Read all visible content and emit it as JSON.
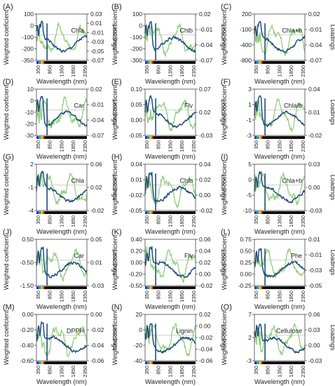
{
  "figure": {
    "panel_labels": [
      "(A)",
      "(B)",
      "(C)",
      "(D)",
      "(E)",
      "(F)",
      "(G)",
      "(H)",
      "(I)",
      "(J)",
      "(K)",
      "(L)",
      "(M)",
      "(N)",
      "(O)"
    ],
    "ylabel_left": "Weighted coeficient",
    "ylabel_right": "Loadings",
    "xlabel": "Wavelength (nm)",
    "x_ticks": [
      "350",
      "850",
      "1350",
      "1850",
      "2350"
    ],
    "colors": {
      "weighted": "#1f4e79",
      "loadings": "#8fce7a",
      "zero_line": "#c8c8c8"
    }
  },
  "chart_data": [
    {
      "label": "(A)",
      "annotation": "Chla",
      "type": "line",
      "xlim": [
        350,
        2500
      ],
      "yticks_left": [
        "100",
        "0",
        "-100",
        "-200",
        "-350"
      ],
      "yticks_right": [
        "0.03",
        "0.01",
        "-0.01",
        "-0.03",
        "-0.05",
        "-0.07"
      ]
    },
    {
      "label": "(B)",
      "annotation": "Chlb",
      "type": "line",
      "xlim": [
        350,
        2500
      ],
      "yticks_left": [
        "100",
        "0",
        "-100",
        "-200",
        "-300"
      ],
      "yticks_right": [
        "0.02",
        "-0.01",
        "-0.04",
        "-0.07"
      ]
    },
    {
      "label": "(C)",
      "annotation": "Chla+b",
      "type": "line",
      "xlim": [
        350,
        2500
      ],
      "yticks_left": [
        "200",
        "-100",
        "-400",
        "-800"
      ],
      "yticks_right": [
        "0.02",
        "-0.01",
        "-0.04",
        "-0.07"
      ]
    },
    {
      "label": "(D)",
      "annotation": "Car",
      "type": "line",
      "xlim": [
        350,
        2500
      ],
      "yticks_left": [
        "10",
        "0",
        "-10",
        "-20",
        "-30"
      ],
      "yticks_right": [
        "0.02",
        "-0.01",
        "-0.04",
        "-0.07"
      ]
    },
    {
      "label": "(E)",
      "annotation": "Flv",
      "type": "line",
      "xlim": [
        350,
        2500
      ],
      "yticks_left": [
        "0.10",
        "0.05",
        "0.00",
        "-0.05"
      ],
      "yticks_right": [
        "0.07",
        "0.02",
        "-0.03"
      ]
    },
    {
      "label": "(F)",
      "annotation": "Chla/b",
      "type": "line",
      "xlim": [
        350,
        2500
      ],
      "yticks_left": [
        "3",
        "1",
        "-1",
        "-3"
      ],
      "yticks_right": [
        "0.04",
        "0.01",
        "-0.02"
      ]
    },
    {
      "label": "(G)",
      "annotation": "Chla",
      "type": "line",
      "xlim": [
        350,
        2500
      ],
      "yticks_left": [
        "2",
        "-1",
        "-4"
      ],
      "yticks_right": [
        "0.06",
        "0.02",
        "-0.02"
      ]
    },
    {
      "label": "(H)",
      "annotation": "Chlb",
      "type": "line",
      "xlim": [
        350,
        2500
      ],
      "yticks_left": [
        "0.04",
        "0.01",
        "-0.02",
        "-0.05"
      ],
      "yticks_right": [
        "0.04",
        "0.02",
        "0.00",
        "-0.02"
      ]
    },
    {
      "label": "(I)",
      "annotation": "Chla+b",
      "type": "line",
      "xlim": [
        350,
        2500
      ],
      "yticks_left": [
        "5",
        "0",
        "-5",
        "-10"
      ],
      "yticks_right": [
        "0.03",
        "0.00",
        "-0.03"
      ]
    },
    {
      "label": "(J)",
      "annotation": "Car",
      "type": "line",
      "xlim": [
        350,
        2500
      ],
      "yticks_left": [
        "0.50",
        "-0.50",
        "-1.50"
      ],
      "yticks_right": [
        "0.05",
        "0.01",
        "-0.03"
      ]
    },
    {
      "label": "(K)",
      "annotation": "Flv",
      "type": "line",
      "xlim": [
        350,
        2500
      ],
      "yticks_left": [
        "0.40",
        "0.20",
        "0.00",
        "-0.20",
        "-0.50"
      ],
      "yticks_right": [
        "0.06",
        "0.04",
        "0.02",
        "0.00",
        "-0.02"
      ]
    },
    {
      "label": "(L)",
      "annotation": "Phe",
      "type": "line",
      "xlim": [
        350,
        2500
      ],
      "yticks_left": [
        "0.75",
        "0.50",
        "0.25",
        "0.00",
        "-0.25"
      ],
      "yticks_right": [
        "0.01",
        "-0.01",
        "-0.03",
        "-0.05"
      ]
    },
    {
      "label": "(M)",
      "annotation": "DPPH",
      "type": "line",
      "xlim": [
        350,
        2500
      ],
      "yticks_left": [
        "0.00",
        "-0.20",
        "-0.40",
        "-0.60"
      ],
      "yticks_right": [
        "0.00",
        "-0.02",
        "-0.04",
        "-0.06"
      ]
    },
    {
      "label": "(N)",
      "annotation": "Lignin",
      "type": "line",
      "xlim": [
        350,
        2500
      ],
      "yticks_left": [
        "20",
        "0",
        "-20",
        "-40"
      ],
      "yticks_right": [
        "0.02",
        "0.00",
        "-0.02",
        "-0.04",
        "-0.06"
      ]
    },
    {
      "label": "(O)",
      "annotation": "Cellulose",
      "type": "line",
      "xlim": [
        350,
        2500
      ],
      "yticks_left": [
        "7",
        "2",
        "-3"
      ],
      "yticks_right": [
        "0.06",
        "0.03",
        "0.00",
        "-0.03"
      ]
    }
  ]
}
